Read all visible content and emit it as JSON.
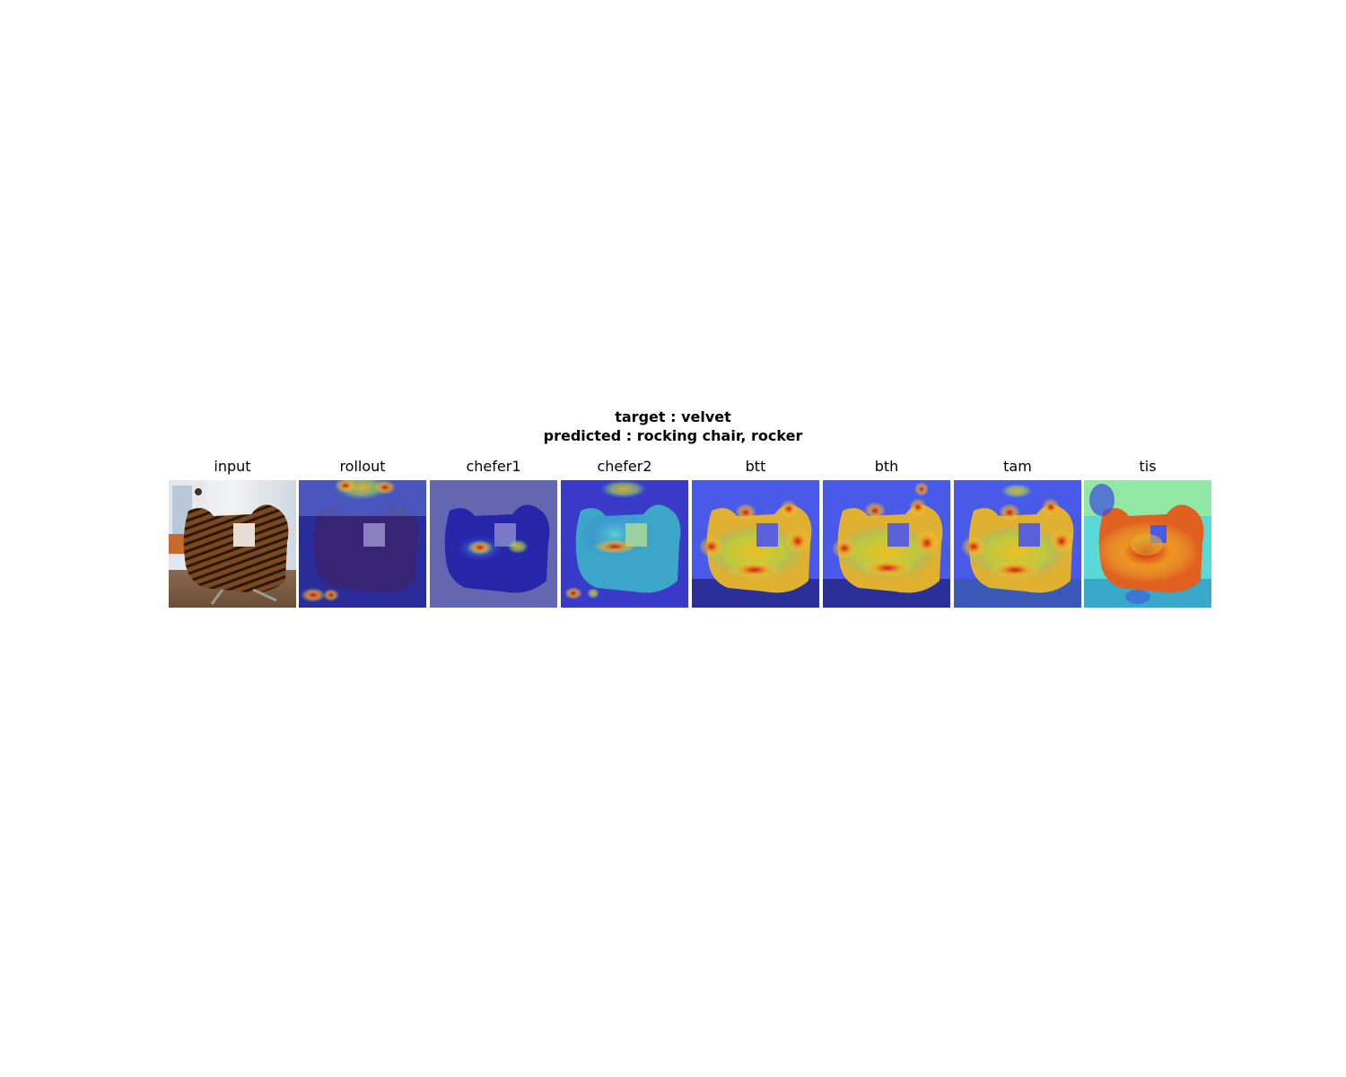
{
  "figure": {
    "title_line_1": "target : velvet",
    "title_line_2": "predicted : rocking chair, rocker"
  },
  "panels": [
    {
      "label": "input"
    },
    {
      "label": "rollout"
    },
    {
      "label": "chefer1"
    },
    {
      "label": "chefer2"
    },
    {
      "label": "btt"
    },
    {
      "label": "bth"
    },
    {
      "label": "tam"
    },
    {
      "label": "tis"
    }
  ]
}
